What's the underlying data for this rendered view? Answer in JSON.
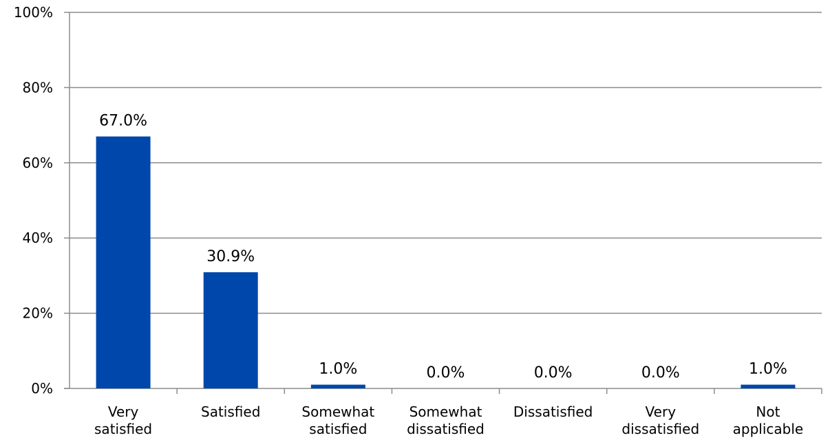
{
  "chart_data": {
    "type": "bar",
    "categories": [
      [
        "Very",
        "satisfied"
      ],
      [
        "Satisfied"
      ],
      [
        "Somewhat",
        "satisfied"
      ],
      [
        "Somewhat",
        "dissatisfied"
      ],
      [
        "Dissatisfied"
      ],
      [
        "Very",
        "dissatisfied"
      ],
      [
        "Not",
        "applicable"
      ]
    ],
    "values": [
      67.0,
      30.9,
      1.0,
      0.0,
      0.0,
      0.0,
      1.0
    ],
    "data_labels": [
      "67.0%",
      "30.9%",
      "1.0%",
      "0.0%",
      "0.0%",
      "0.0%",
      "1.0%"
    ],
    "y_ticks": [
      0,
      20,
      40,
      60,
      80,
      100
    ],
    "y_tick_labels": [
      "0%",
      "20%",
      "40%",
      "60%",
      "80%",
      "100%"
    ],
    "ylim": [
      0,
      100
    ],
    "grid": true,
    "legend": "none",
    "title": "",
    "xlabel": "",
    "ylabel": "",
    "colors": {
      "bar": "#0047AB",
      "grid": "#8c8c8c",
      "axis": "#8c8c8c"
    }
  }
}
